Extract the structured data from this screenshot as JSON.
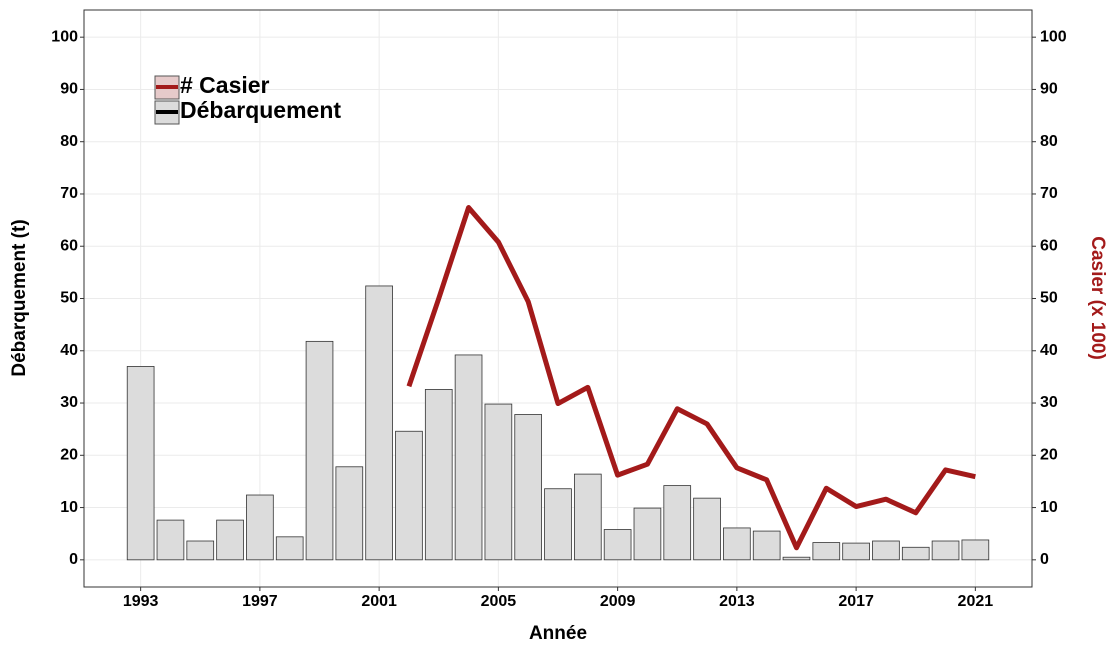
{
  "chart_data": {
    "type": "bar_line",
    "x": [
      1993,
      1994,
      1995,
      1996,
      1997,
      1998,
      1999,
      2000,
      2001,
      2002,
      2003,
      2004,
      2005,
      2006,
      2007,
      2008,
      2009,
      2010,
      2011,
      2012,
      2013,
      2014,
      2015,
      2016,
      2017,
      2018,
      2019,
      2020,
      2021
    ],
    "series": [
      {
        "name": "Débarquement",
        "type": "bar",
        "color": "#dcdcdc",
        "values": [
          37,
          7.6,
          3.6,
          7.6,
          12.4,
          4.4,
          41.8,
          17.8,
          52.4,
          24.6,
          32.6,
          39.2,
          29.8,
          27.8,
          13.6,
          16.4,
          5.8,
          9.9,
          14.2,
          11.8,
          6.1,
          5.5,
          0.5,
          3.3,
          3.2,
          3.6,
          2.4,
          3.6,
          3.8
        ]
      },
      {
        "name": "# Casier",
        "type": "line",
        "color": "#a31a1a",
        "axis": "y2",
        "values": [
          null,
          null,
          null,
          null,
          null,
          null,
          null,
          null,
          null,
          33.2,
          50,
          67.4,
          60.8,
          49.4,
          29.9,
          33,
          16.2,
          18.3,
          28.9,
          26,
          17.6,
          15.3,
          2.3,
          13.7,
          10.2,
          11.6,
          9,
          17.2,
          15.9
        ]
      }
    ],
    "x_label": "Année",
    "y_label": "Débarquement (t)",
    "y2_label": "Casier (x 100)",
    "xlim": [
      1991.1,
      2022.9
    ],
    "xticks": [
      1993,
      1997,
      2001,
      2005,
      2009,
      2013,
      2017,
      2021
    ],
    "ylim": [
      -5.2,
      105.2
    ],
    "yticks": [
      0,
      10,
      20,
      30,
      40,
      50,
      60,
      70,
      80,
      90,
      100
    ],
    "y2lim": [
      -5.2,
      105.2
    ],
    "y2ticks": [
      0,
      10,
      20,
      30,
      40,
      50,
      60,
      70,
      80,
      90,
      100
    ],
    "grid": true,
    "legend": "top-left"
  }
}
